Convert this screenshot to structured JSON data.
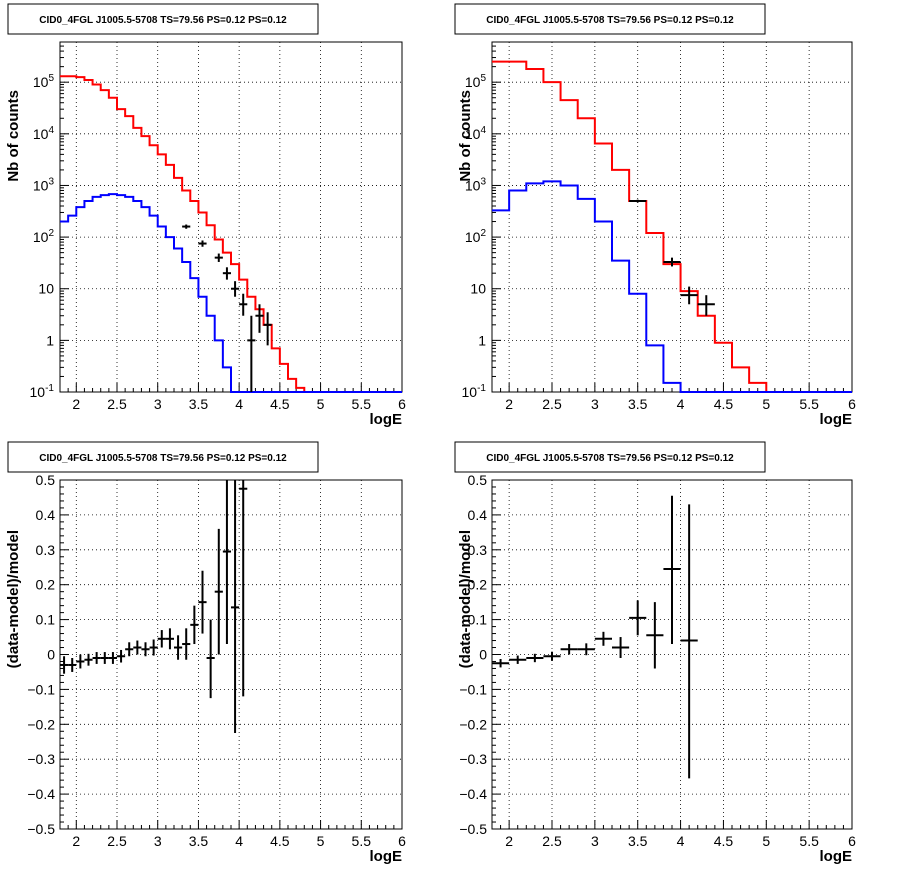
{
  "chart_data": [
    {
      "type": "line",
      "title": "CID0_4FGL J1005.5-5708 TS=79.56 PS=0.12 PS=0.12",
      "xlabel": "logE",
      "ylabel": "Nb of counts",
      "ylog": true,
      "xlim": [
        1.8,
        6.0
      ],
      "ylim": [
        0.1,
        600000
      ],
      "grid": true,
      "x_ticks": [
        "2",
        "2.5",
        "3",
        "3.5",
        "4",
        "4.5",
        "5",
        "5.5",
        "6"
      ],
      "y_ticks": [
        "10^-1",
        "1",
        "10",
        "10^2",
        "10^3",
        "10^4",
        "10^5"
      ],
      "bin_edges": [
        1.8,
        1.9,
        2.0,
        2.1,
        2.2,
        2.3,
        2.4,
        2.5,
        2.6,
        2.7,
        2.8,
        2.9,
        3.0,
        3.1,
        3.2,
        3.3,
        3.4,
        3.5,
        3.6,
        3.7,
        3.8,
        3.9,
        4.0,
        4.1,
        4.2,
        4.3,
        4.4,
        4.5,
        4.6,
        4.7,
        4.8,
        4.9,
        5.0,
        5.1,
        5.2,
        5.3,
        5.4,
        5.5,
        5.6,
        5.7,
        5.8,
        5.9,
        6.0
      ],
      "series": [
        {
          "style": "step",
          "color": "#ff0000",
          "values": [
            130000,
            130000,
            125000,
            110000,
            90000,
            70000,
            50000,
            30000,
            22000,
            13000,
            9000,
            6000,
            4000,
            2500,
            1400,
            800,
            500,
            300,
            170,
            90,
            50,
            30,
            15,
            7,
            4,
            2,
            0.7,
            0.35,
            0.18,
            0.12,
            0.1,
            0.1,
            0.1,
            0.1,
            0.1,
            0.1,
            0.1,
            0.1,
            0.1,
            0.1,
            0.1,
            0.1
          ]
        },
        {
          "style": "step",
          "color": "#0000ff",
          "values": [
            200,
            260,
            380,
            500,
            600,
            650,
            680,
            650,
            600,
            500,
            380,
            260,
            160,
            100,
            60,
            33,
            16,
            7,
            3,
            1,
            0.3,
            0.1,
            0.1,
            0.1,
            0.1,
            0.1,
            0.1,
            0.1,
            0.1,
            0.1,
            0.1,
            0.1,
            0.1,
            0.1,
            0.1,
            0.1,
            0.1,
            0.1,
            0.1,
            0.1,
            0.1,
            0.1
          ]
        },
        {
          "style": "errorbar",
          "color": "#000000",
          "xerr": 0.05,
          "points": [
            {
              "x": 3.35,
              "y": 160,
              "lo": 145,
              "hi": 175
            },
            {
              "x": 3.55,
              "y": 75,
              "lo": 65,
              "hi": 86
            },
            {
              "x": 3.75,
              "y": 40,
              "lo": 33,
              "hi": 48
            },
            {
              "x": 3.85,
              "y": 20,
              "lo": 15,
              "hi": 26
            },
            {
              "x": 3.95,
              "y": 10,
              "lo": 7,
              "hi": 14
            },
            {
              "x": 4.05,
              "y": 5,
              "lo": 3,
              "hi": 8
            },
            {
              "x": 4.15,
              "y": 1,
              "lo": 0.1,
              "hi": 3
            },
            {
              "x": 4.25,
              "y": 3,
              "lo": 1.4,
              "hi": 5
            },
            {
              "x": 4.35,
              "y": 2,
              "lo": 0.8,
              "hi": 3.5
            }
          ]
        }
      ]
    },
    {
      "type": "line",
      "title": "CID0_4FGL J1005.5-5708 TS=79.56 PS=0.12 PS=0.12",
      "xlabel": "logE",
      "ylabel": "Nb of counts",
      "ylog": true,
      "xlim": [
        1.8,
        6.0
      ],
      "ylim": [
        0.1,
        600000
      ],
      "grid": true,
      "x_ticks": [
        "2",
        "2.5",
        "3",
        "3.5",
        "4",
        "4.5",
        "5",
        "5.5",
        "6"
      ],
      "y_ticks": [
        "10^-1",
        "1",
        "10",
        "10^2",
        "10^3",
        "10^4",
        "10^5"
      ],
      "bin_edges": [
        1.8,
        2.0,
        2.2,
        2.4,
        2.6,
        2.8,
        3.0,
        3.2,
        3.4,
        3.6,
        3.8,
        4.0,
        4.2,
        4.4,
        4.6,
        4.8,
        5.0,
        5.2,
        5.4,
        5.6,
        5.8,
        6.0
      ],
      "series": [
        {
          "style": "step",
          "color": "#ff0000",
          "values": [
            250000,
            250000,
            180000,
            100000,
            45000,
            20000,
            6500,
            2000,
            500,
            120,
            30,
            9,
            3,
            0.9,
            0.3,
            0.15,
            0.1,
            0.1,
            0.1,
            0.1,
            0.1
          ]
        },
        {
          "style": "step",
          "color": "#0000ff",
          "values": [
            330,
            800,
            1100,
            1200,
            1000,
            550,
            200,
            35,
            8,
            0.8,
            0.15,
            0.1,
            0.1,
            0.1,
            0.1,
            0.1,
            0.1,
            0.1,
            0.1,
            0.1,
            0.1
          ]
        },
        {
          "style": "errorbar",
          "color": "#000000",
          "xerr": 0.1,
          "points": [
            {
              "x": 3.5,
              "y": 500,
              "lo": 470,
              "hi": 530
            },
            {
              "x": 3.9,
              "y": 33,
              "lo": 27,
              "hi": 40
            },
            {
              "x": 4.1,
              "y": 7.5,
              "lo": 5,
              "hi": 11
            },
            {
              "x": 4.3,
              "y": 5,
              "lo": 3,
              "hi": 7.5
            }
          ]
        }
      ]
    },
    {
      "type": "scatter",
      "title": "CID0_4FGL J1005.5-5708 TS=79.56 PS=0.12 PS=0.12",
      "xlabel": "logE",
      "ylabel": "(data-model)/model",
      "ylog": false,
      "xlim": [
        1.8,
        6.0
      ],
      "ylim": [
        -0.5,
        0.5
      ],
      "grid": true,
      "x_ticks": [
        "2",
        "2.5",
        "3",
        "3.5",
        "4",
        "4.5",
        "5",
        "5.5",
        "6"
      ],
      "y_ticks": [
        "-0.5",
        "-0.4",
        "-0.3",
        "-0.2",
        "-0.1",
        "0",
        "0.1",
        "0.2",
        "0.3",
        "0.4",
        "0.5"
      ],
      "series": [
        {
          "style": "errorbar",
          "color": "#000000",
          "xerr": 0.05,
          "points": [
            {
              "x": 1.85,
              "y": -0.03,
              "lo": -0.055,
              "hi": -0.005
            },
            {
              "x": 1.95,
              "y": -0.03,
              "lo": -0.05,
              "hi": -0.01
            },
            {
              "x": 2.05,
              "y": -0.02,
              "lo": -0.04,
              "hi": 0.0
            },
            {
              "x": 2.15,
              "y": -0.015,
              "lo": -0.032,
              "hi": 0.002
            },
            {
              "x": 2.25,
              "y": -0.01,
              "lo": -0.027,
              "hi": 0.007
            },
            {
              "x": 2.35,
              "y": -0.01,
              "lo": -0.027,
              "hi": 0.007
            },
            {
              "x": 2.45,
              "y": -0.01,
              "lo": -0.027,
              "hi": 0.007
            },
            {
              "x": 2.55,
              "y": -0.005,
              "lo": -0.023,
              "hi": 0.013
            },
            {
              "x": 2.65,
              "y": 0.015,
              "lo": -0.005,
              "hi": 0.035
            },
            {
              "x": 2.75,
              "y": 0.02,
              "lo": 0.0,
              "hi": 0.04
            },
            {
              "x": 2.85,
              "y": 0.015,
              "lo": -0.005,
              "hi": 0.035
            },
            {
              "x": 2.95,
              "y": 0.02,
              "lo": -0.003,
              "hi": 0.043
            },
            {
              "x": 3.05,
              "y": 0.045,
              "lo": 0.02,
              "hi": 0.07
            },
            {
              "x": 3.15,
              "y": 0.045,
              "lo": 0.015,
              "hi": 0.075
            },
            {
              "x": 3.25,
              "y": 0.02,
              "lo": -0.015,
              "hi": 0.055
            },
            {
              "x": 3.35,
              "y": 0.03,
              "lo": -0.015,
              "hi": 0.075
            },
            {
              "x": 3.45,
              "y": 0.085,
              "lo": 0.03,
              "hi": 0.14
            },
            {
              "x": 3.55,
              "y": 0.15,
              "lo": 0.06,
              "hi": 0.24
            },
            {
              "x": 3.65,
              "y": -0.01,
              "lo": -0.125,
              "hi": 0.1
            },
            {
              "x": 3.75,
              "y": 0.18,
              "lo": 0.0,
              "hi": 0.36
            },
            {
              "x": 3.85,
              "y": 0.295,
              "lo": 0.03,
              "hi": 0.5
            },
            {
              "x": 3.95,
              "y": 0.135,
              "lo": -0.225,
              "hi": 0.5
            },
            {
              "x": 4.05,
              "y": 0.475,
              "lo": -0.12,
              "hi": 0.5
            }
          ]
        }
      ]
    },
    {
      "type": "scatter",
      "title": "CID0_4FGL J1005.5-5708 TS=79.56 PS=0.12 PS=0.12",
      "xlabel": "logE",
      "ylabel": "(data-model)/model",
      "ylog": false,
      "xlim": [
        1.8,
        6.0
      ],
      "ylim": [
        -0.5,
        0.5
      ],
      "grid": true,
      "x_ticks": [
        "2",
        "2.5",
        "3",
        "3.5",
        "4",
        "4.5",
        "5",
        "5.5",
        "6"
      ],
      "y_ticks": [
        "-0.5",
        "-0.4",
        "-0.3",
        "-0.2",
        "-0.1",
        "0",
        "0.1",
        "0.2",
        "0.3",
        "0.4",
        "0.5"
      ],
      "series": [
        {
          "style": "errorbar",
          "color": "#000000",
          "xerr": 0.1,
          "points": [
            {
              "x": 1.9,
              "y": -0.025,
              "lo": -0.037,
              "hi": -0.013
            },
            {
              "x": 2.1,
              "y": -0.015,
              "lo": -0.027,
              "hi": -0.003
            },
            {
              "x": 2.3,
              "y": -0.01,
              "lo": -0.022,
              "hi": 0.002
            },
            {
              "x": 2.5,
              "y": -0.005,
              "lo": -0.018,
              "hi": 0.008
            },
            {
              "x": 2.7,
              "y": 0.015,
              "lo": 0.0,
              "hi": 0.03
            },
            {
              "x": 2.9,
              "y": 0.015,
              "lo": -0.002,
              "hi": 0.032
            },
            {
              "x": 3.1,
              "y": 0.045,
              "lo": 0.025,
              "hi": 0.065
            },
            {
              "x": 3.3,
              "y": 0.02,
              "lo": -0.01,
              "hi": 0.05
            },
            {
              "x": 3.5,
              "y": 0.105,
              "lo": 0.055,
              "hi": 0.155
            },
            {
              "x": 3.7,
              "y": 0.055,
              "lo": -0.04,
              "hi": 0.15
            },
            {
              "x": 3.9,
              "y": 0.245,
              "lo": 0.03,
              "hi": 0.455
            },
            {
              "x": 4.1,
              "y": 0.04,
              "lo": -0.355,
              "hi": 0.43
            }
          ]
        }
      ]
    }
  ]
}
